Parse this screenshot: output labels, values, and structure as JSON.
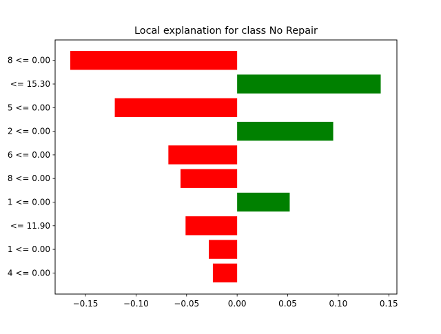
{
  "chart_data": {
    "type": "bar",
    "orientation": "horizontal",
    "title": "Local explanation for class No Repair",
    "xlabel": "",
    "ylabel": "",
    "xlim": [
      -0.18,
      0.158
    ],
    "grid": false,
    "legend": "none",
    "colors": {
      "positive": "#008000",
      "negative": "#ff0000"
    },
    "categories": [
      "8 <= 0.00",
      "<= 15.30",
      "5 <= 0.00",
      "2 <= 0.00",
      "6 <= 0.00",
      "8 <= 0.00",
      "1 <= 0.00",
      "<= 11.90",
      "1 <= 0.00",
      "4 <= 0.00"
    ],
    "values": [
      -0.165,
      0.142,
      -0.121,
      0.095,
      -0.068,
      -0.056,
      0.052,
      -0.051,
      -0.028,
      -0.024
    ],
    "xticks": [
      -0.15,
      -0.1,
      -0.05,
      0.0,
      0.05,
      0.1,
      0.15
    ],
    "xtick_labels": [
      "−0.15",
      "−0.10",
      "−0.05",
      "0.00",
      "0.05",
      "0.10",
      "0.15"
    ]
  }
}
